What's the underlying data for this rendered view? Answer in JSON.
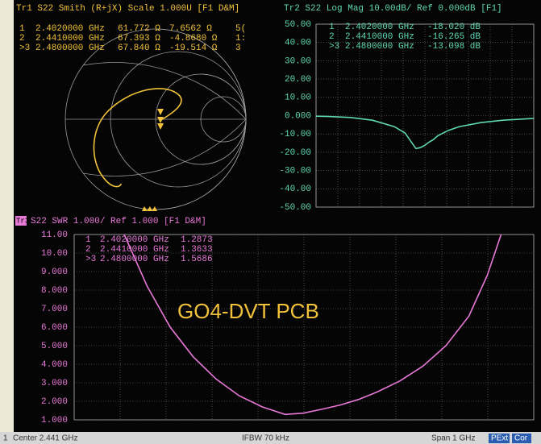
{
  "chart_data": [
    {
      "type": "smith",
      "title": "Tr1 S22 Smith (R+jX) Scale 1.000U [F1 D&M]",
      "color": "#f2c23a",
      "markers": [
        [
          "1",
          "2.4020000 GHz",
          "61.772 Ω",
          "7.6562 Ω",
          "5("
        ],
        [
          "2",
          "2.4410000 GHz",
          "67.393 Ω",
          "-4.8680 Ω",
          "1:"
        ],
        [
          ">3",
          "2.4800000 GHz",
          "67.840 Ω",
          "-19.514 Ω",
          "3"
        ]
      ]
    },
    {
      "type": "line",
      "title": "Tr2 S22 Log Mag 10.00dB/ Ref 0.000dB [F1]",
      "color": "#5fd8b4",
      "markers": [
        [
          "1",
          "2.4020000 GHz",
          "-18.020 dB"
        ],
        [
          "2",
          "2.4410000 GHz",
          "-16.265 dB"
        ],
        [
          ">3",
          "2.4800000 GHz",
          "-13.098 dB"
        ]
      ],
      "x": [
        1.941,
        2.0,
        2.1,
        2.2,
        2.3,
        2.35,
        2.4,
        2.42,
        2.44,
        2.46,
        2.48,
        2.5,
        2.55,
        2.6,
        2.7,
        2.8,
        2.941
      ],
      "values": [
        -0.3,
        -0.5,
        -1,
        -2.5,
        -6,
        -9.5,
        -18,
        -17.5,
        -16.3,
        -14.5,
        -13.1,
        -11,
        -8,
        -6,
        -3.8,
        -2.5,
        -1.5
      ],
      "xlim": [
        1.941,
        2.941
      ],
      "ylim": [
        -50,
        50
      ],
      "yticks": [
        {
          "value": 50,
          "label": "50.00"
        },
        {
          "value": 40,
          "label": "40.00"
        },
        {
          "value": 30,
          "label": "30.00"
        },
        {
          "value": 20,
          "label": "20.00"
        },
        {
          "value": 10,
          "label": "10.00"
        },
        {
          "value": 0,
          "label": "0.000"
        },
        {
          "value": -10,
          "label": "-10.00"
        },
        {
          "value": -20,
          "label": "-20.00"
        },
        {
          "value": -30,
          "label": "-30.00"
        },
        {
          "value": -40,
          "label": "-40.00"
        },
        {
          "value": -50,
          "label": "-50.00"
        }
      ],
      "grid": true
    },
    {
      "type": "line",
      "trace_tab": "Tr3",
      "title": "S22 SWR 1.000/ Ref 1.000 [F1 D&M]",
      "color": "#e878d8",
      "annotation": "GO4-DVT PCB",
      "markers": [
        [
          "1",
          "2.4020000 GHz",
          "1.2873"
        ],
        [
          "2",
          "2.4410000 GHz",
          "1.3633"
        ],
        [
          ">3",
          "2.4800000 GHz",
          "1.5686"
        ]
      ],
      "x": [
        2.05,
        2.1,
        2.15,
        2.2,
        2.25,
        2.3,
        2.35,
        2.4,
        2.44,
        2.48,
        2.52,
        2.56,
        2.6,
        2.65,
        2.7,
        2.75,
        2.8,
        2.84,
        2.87
      ],
      "values": [
        11,
        8.2,
        6.0,
        4.4,
        3.2,
        2.3,
        1.7,
        1.29,
        1.36,
        1.57,
        1.8,
        2.1,
        2.5,
        3.1,
        3.9,
        5.0,
        6.6,
        8.8,
        11
      ],
      "xlim": [
        1.941,
        2.941
      ],
      "ylim": [
        1,
        11
      ],
      "yticks": [
        {
          "value": 11,
          "label": "11.00"
        },
        {
          "value": 10,
          "label": "10.00"
        },
        {
          "value": 9,
          "label": "9.000"
        },
        {
          "value": 8,
          "label": "8.000"
        },
        {
          "value": 7,
          "label": "7.000"
        },
        {
          "value": 6,
          "label": "6.000"
        },
        {
          "value": 5,
          "label": "5.000"
        },
        {
          "value": 4,
          "label": "4.000"
        },
        {
          "value": 3,
          "label": "3.000"
        },
        {
          "value": 2,
          "label": "2.000"
        },
        {
          "value": 1,
          "label": "1.000"
        }
      ],
      "grid": true
    }
  ],
  "status_bar": {
    "channel": "1",
    "center": "Center 2.441 GHz",
    "ifbw": "IFBW 70 kHz",
    "span": "Span 1 GHz",
    "pext": "PExt",
    "cor": "Cor"
  }
}
